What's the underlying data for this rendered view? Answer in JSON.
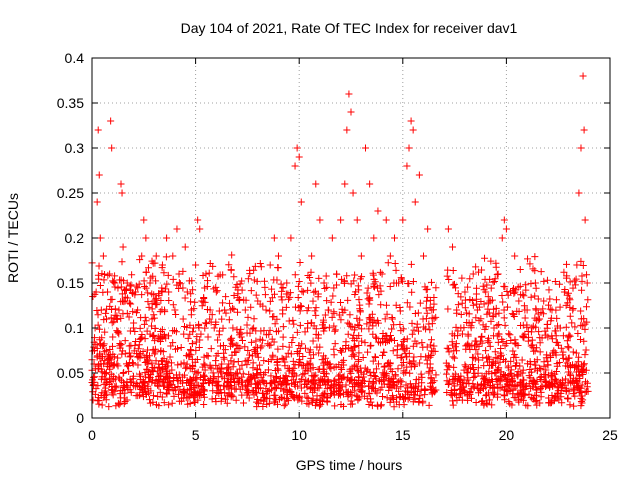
{
  "chart_data": {
    "type": "scatter",
    "title": "Day 104 of 2021, Rate Of TEC Index for receiver dav1",
    "xlabel": "GPS time / hours",
    "ylabel": "ROTI / TECUs",
    "xlim": [
      0,
      25
    ],
    "ylim": [
      0,
      0.4
    ],
    "x_ticks": [
      0,
      5,
      10,
      15,
      20,
      25
    ],
    "y_ticks": [
      0,
      0.05,
      0.1,
      0.15,
      0.2,
      0.25,
      0.3,
      0.35,
      0.4
    ],
    "x_tick_labels": [
      "0",
      "5",
      "10",
      "15",
      "20",
      "25"
    ],
    "y_tick_labels": [
      "0",
      "0.05",
      "0.1",
      "0.15",
      "0.2",
      "0.25",
      "0.3",
      "0.35",
      "0.4"
    ],
    "grid": true,
    "marker": "+",
    "marker_color": "#ff0000",
    "series": [
      {
        "points": [
          [
            0.05,
            0.02
          ],
          [
            0.1,
            0.06
          ],
          [
            0.15,
            0.1
          ],
          [
            0.2,
            0.14
          ],
          [
            0.25,
            0.24
          ],
          [
            0.3,
            0.32
          ],
          [
            0.35,
            0.27
          ],
          [
            0.4,
            0.2
          ],
          [
            0.45,
            0.12
          ],
          [
            0.5,
            0.08
          ],
          [
            0.55,
            0.18
          ],
          [
            0.6,
            0.05
          ],
          [
            0.65,
            0.03
          ],
          [
            0.7,
            0.11
          ],
          [
            0.75,
            0.14
          ],
          [
            0.8,
            0.07
          ],
          [
            0.85,
            0.16
          ],
          [
            0.9,
            0.33
          ],
          [
            0.95,
            0.3
          ],
          [
            1.0,
            0.09
          ],
          [
            1.1,
            0.15
          ],
          [
            1.2,
            0.06
          ],
          [
            1.3,
            0.12
          ],
          [
            1.4,
            0.26
          ],
          [
            1.45,
            0.25
          ],
          [
            1.5,
            0.19
          ],
          [
            1.6,
            0.13
          ],
          [
            1.7,
            0.15
          ],
          [
            1.8,
            0.08
          ],
          [
            1.9,
            0.04
          ],
          [
            2.0,
            0.1
          ],
          [
            2.1,
            0.14
          ],
          [
            2.2,
            0.12
          ],
          [
            2.3,
            0.07
          ],
          [
            2.4,
            0.18
          ],
          [
            2.5,
            0.22
          ],
          [
            2.6,
            0.2
          ],
          [
            2.7,
            0.06
          ],
          [
            2.8,
            0.15
          ],
          [
            2.9,
            0.11
          ],
          [
            3.0,
            0.13
          ],
          [
            3.1,
            0.18
          ],
          [
            3.2,
            0.09
          ],
          [
            3.3,
            0.05
          ],
          [
            3.4,
            0.17
          ],
          [
            3.5,
            0.12
          ],
          [
            3.6,
            0.2
          ],
          [
            3.7,
            0.14
          ],
          [
            3.8,
            0.08
          ],
          [
            3.9,
            0.18
          ],
          [
            4.0,
            0.12
          ],
          [
            4.1,
            0.21
          ],
          [
            4.2,
            0.16
          ],
          [
            4.3,
            0.06
          ],
          [
            4.4,
            0.11
          ],
          [
            4.5,
            0.19
          ],
          [
            4.6,
            0.14
          ],
          [
            4.7,
            0.07
          ],
          [
            4.8,
            0.12
          ],
          [
            4.9,
            0.1
          ],
          [
            5.0,
            0.17
          ],
          [
            5.1,
            0.22
          ],
          [
            5.2,
            0.21
          ],
          [
            5.3,
            0.13
          ],
          [
            5.4,
            0.06
          ],
          [
            5.5,
            0.16
          ],
          [
            5.6,
            0.09
          ],
          [
            5.7,
            0.12
          ],
          [
            5.8,
            0.04
          ],
          [
            5.9,
            0.1
          ],
          [
            6.0,
            0.14
          ],
          [
            6.2,
            0.08
          ],
          [
            6.4,
            0.12
          ],
          [
            6.6,
            0.06
          ],
          [
            6.8,
            0.1
          ],
          [
            7.0,
            0.05
          ],
          [
            7.2,
            0.09
          ],
          [
            7.4,
            0.12
          ],
          [
            7.6,
            0.07
          ],
          [
            7.8,
            0.1
          ],
          [
            8.0,
            0.13
          ],
          [
            8.2,
            0.08
          ],
          [
            8.4,
            0.12
          ],
          [
            8.6,
            0.17
          ],
          [
            8.8,
            0.2
          ],
          [
            9.0,
            0.18
          ],
          [
            9.2,
            0.12
          ],
          [
            9.4,
            0.15
          ],
          [
            9.6,
            0.2
          ],
          [
            9.8,
            0.28
          ],
          [
            9.9,
            0.3
          ],
          [
            10.0,
            0.29
          ],
          [
            10.1,
            0.24
          ],
          [
            10.2,
            0.14
          ],
          [
            10.4,
            0.1
          ],
          [
            10.6,
            0.18
          ],
          [
            10.8,
            0.26
          ],
          [
            11.0,
            0.22
          ],
          [
            11.2,
            0.15
          ],
          [
            11.4,
            0.12
          ],
          [
            11.6,
            0.2
          ],
          [
            11.8,
            0.16
          ],
          [
            12.0,
            0.22
          ],
          [
            12.2,
            0.26
          ],
          [
            12.3,
            0.32
          ],
          [
            12.4,
            0.36
          ],
          [
            12.5,
            0.34
          ],
          [
            12.6,
            0.25
          ],
          [
            12.8,
            0.22
          ],
          [
            13.0,
            0.18
          ],
          [
            13.2,
            0.3
          ],
          [
            13.4,
            0.26
          ],
          [
            13.6,
            0.2
          ],
          [
            13.8,
            0.23
          ],
          [
            14.0,
            0.16
          ],
          [
            14.2,
            0.22
          ],
          [
            14.4,
            0.18
          ],
          [
            14.6,
            0.2
          ],
          [
            14.8,
            0.15
          ],
          [
            15.0,
            0.22
          ],
          [
            15.2,
            0.28
          ],
          [
            15.3,
            0.3
          ],
          [
            15.4,
            0.33
          ],
          [
            15.5,
            0.32
          ],
          [
            15.6,
            0.24
          ],
          [
            15.8,
            0.27
          ],
          [
            16.0,
            0.18
          ],
          [
            16.2,
            0.21
          ],
          [
            16.4,
            0.12
          ],
          [
            16.5,
            0.08
          ],
          [
            17.2,
            0.21
          ],
          [
            17.4,
            0.19
          ],
          [
            17.6,
            0.12
          ],
          [
            17.8,
            0.1
          ],
          [
            18.0,
            0.14
          ],
          [
            18.2,
            0.08
          ],
          [
            18.4,
            0.16
          ],
          [
            18.6,
            0.12
          ],
          [
            18.8,
            0.09
          ],
          [
            19.0,
            0.14
          ],
          [
            19.2,
            0.13
          ],
          [
            19.4,
            0.1
          ],
          [
            19.6,
            0.16
          ],
          [
            19.8,
            0.2
          ],
          [
            19.9,
            0.22
          ],
          [
            20.0,
            0.21
          ],
          [
            20.2,
            0.14
          ],
          [
            20.4,
            0.18
          ],
          [
            20.6,
            0.13
          ],
          [
            20.8,
            0.09
          ],
          [
            21.0,
            0.12
          ],
          [
            21.2,
            0.08
          ],
          [
            21.4,
            0.15
          ],
          [
            21.6,
            0.11
          ],
          [
            21.8,
            0.13
          ],
          [
            22.0,
            0.09
          ],
          [
            22.2,
            0.12
          ],
          [
            22.4,
            0.07
          ],
          [
            22.6,
            0.1
          ],
          [
            22.8,
            0.14
          ],
          [
            23.0,
            0.09
          ],
          [
            23.2,
            0.12
          ],
          [
            23.4,
            0.17
          ],
          [
            23.5,
            0.25
          ],
          [
            23.6,
            0.3
          ],
          [
            23.7,
            0.38
          ],
          [
            23.75,
            0.32
          ],
          [
            23.8,
            0.22
          ],
          [
            23.9,
            0.15
          ]
        ]
      }
    ]
  }
}
